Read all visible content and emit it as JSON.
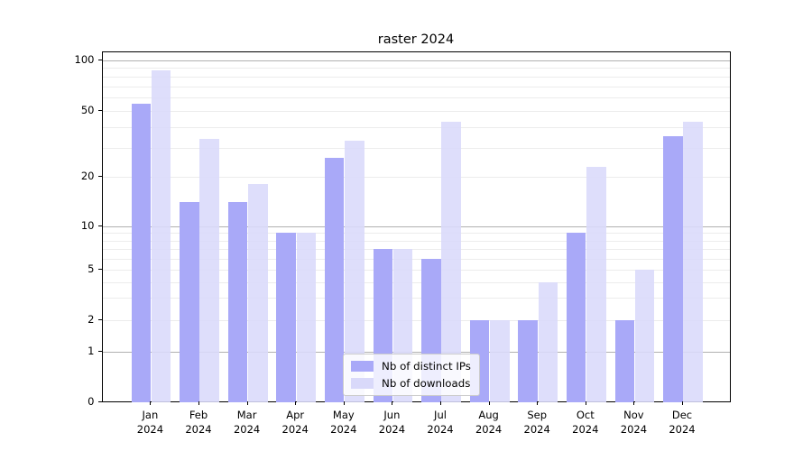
{
  "title": "raster 2024",
  "chart_data": {
    "type": "bar",
    "title": "raster 2024",
    "categories": [
      "Jan 2024",
      "Feb 2024",
      "Mar 2024",
      "Apr 2024",
      "May 2024",
      "Jun 2024",
      "Jul 2024",
      "Aug 2024",
      "Sep 2024",
      "Oct 2024",
      "Nov 2024",
      "Dec 2024"
    ],
    "x_months": [
      "Jan",
      "Feb",
      "Mar",
      "Apr",
      "May",
      "Jun",
      "Jul",
      "Aug",
      "Sep",
      "Oct",
      "Nov",
      "Dec"
    ],
    "x_year": "2024",
    "series": [
      {
        "name": "Nb of distinct IPs",
        "color": "#a9a9f8",
        "values": [
          55,
          14,
          14,
          9,
          26,
          7,
          6,
          2,
          2,
          9,
          2,
          35
        ]
      },
      {
        "name": "Nb of downloads",
        "color": "#d9d9fa",
        "values": [
          87,
          34,
          18,
          9,
          33,
          7,
          43,
          2,
          4,
          23,
          5,
          43
        ]
      }
    ],
    "yscale": "asinh",
    "yticks": [
      0,
      1,
      2,
      5,
      10,
      20,
      50,
      100
    ],
    "ytick_labels": [
      "0",
      "1",
      "2",
      "5",
      "10",
      "20",
      "50",
      "100"
    ],
    "minor_gridlines": [
      2,
      3,
      4,
      5,
      6,
      7,
      8,
      9,
      20,
      30,
      40,
      50,
      60,
      70,
      80,
      90
    ],
    "major_gridlines": [
      1,
      10,
      100
    ],
    "ylim": [
      0,
      112
    ],
    "xlabel": "",
    "ylabel": "",
    "grid": "horizontal",
    "legend_position": "lower center"
  }
}
